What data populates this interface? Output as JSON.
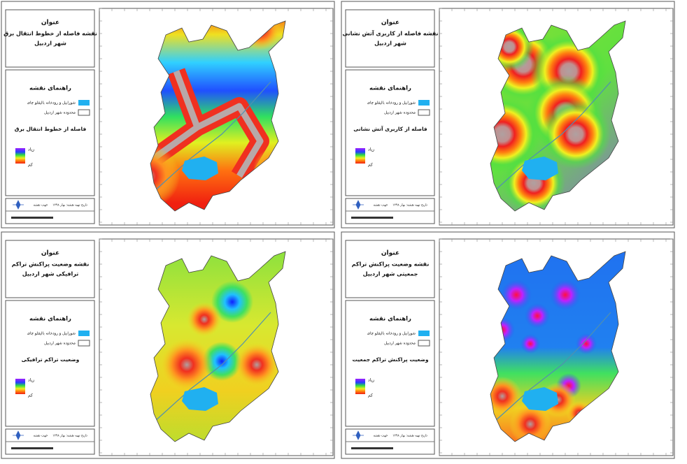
{
  "panels": [
    {
      "heading": "عنوان",
      "title_lines": [
        "نقشه فاصله از خطوط انتقال برق",
        "شهر اردبیل"
      ],
      "legend_heading": "راهنمای نقشه",
      "legend_items": [
        "شورابیل و رودخانه بالیقلو چای",
        "محدوده شهر اردبیل"
      ],
      "layer_title": "فاصله از خطوط انتقال برق",
      "high": "زیاد",
      "low": "کم",
      "date": "تاریخ تهیه نقشه: بهار ۱۳۹۸",
      "north": "جهت نقشه"
    },
    {
      "heading": "عنوان",
      "title_lines": [
        "نقشه فاصله از کاربری آتش نشانی",
        "شهر اردبیل"
      ],
      "legend_heading": "راهنمای نقشه",
      "legend_items": [
        "شورابیل و رودخانه بالیقلو چای",
        "محدوده شهر اردبیل"
      ],
      "layer_title": "فاصله از کاربری آتش نشانی",
      "high": "زیاد",
      "low": "کم",
      "date": "تاریخ تهیه نقشه: بهار ۱۳۹۸",
      "north": "جهت نقشه"
    },
    {
      "heading": "عنوان",
      "title_lines": [
        "نقشه وضعیت پراکنش تراکم",
        "ترافیکی شهر اردبیل"
      ],
      "legend_heading": "راهنمای نقشه",
      "legend_items": [
        "شورابیل و رودخانه بالیقلو چای",
        "محدوده شهر اردبیل"
      ],
      "layer_title": "وضعیت تراکم ترافیکی",
      "high": "زیاد",
      "low": "کم",
      "date": "تاریخ تهیه نقشه: بهار ۱۳۹۸",
      "north": "جهت نقشه"
    },
    {
      "heading": "عنوان",
      "title_lines": [
        "نقشه وضعیت پراکنش تراکم",
        "جمعیتی شهر اردبیل"
      ],
      "legend_heading": "راهنمای نقشه",
      "legend_items": [
        "شورابیل و رودخانه بالیقلو چای",
        "محدوده شهر اردبیل"
      ],
      "layer_title": "وضعیت پراکنش تراکم جمعیت",
      "high": "زیاد",
      "low": "کم",
      "date": "تاریخ تهیه نقشه: بهار ۱۳۹۸",
      "north": "جهت نقشه"
    }
  ]
}
